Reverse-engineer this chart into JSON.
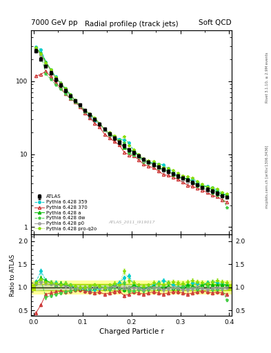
{
  "title_main": "Radial profileρ (track jets)",
  "top_left": "7000 GeV pp",
  "top_right": "Soft QCD",
  "right_label_top": "Rivet 3.1.10, ≥ 2.9M events",
  "right_label_bottom": "mcplots.cern.ch [arXiv:1306.3436]",
  "watermark": "ATLAS_2011_I919017",
  "xlabel": "Charged Particle r",
  "ylabel_ratio": "Ratio to ATLAS",
  "atlas_label": "ATLAS",
  "background_color": "#ffffff",
  "r_values": [
    0.005,
    0.015,
    0.025,
    0.035,
    0.045,
    0.055,
    0.065,
    0.075,
    0.085,
    0.095,
    0.105,
    0.115,
    0.125,
    0.135,
    0.145,
    0.155,
    0.165,
    0.175,
    0.185,
    0.195,
    0.205,
    0.215,
    0.225,
    0.235,
    0.245,
    0.255,
    0.265,
    0.275,
    0.285,
    0.295,
    0.305,
    0.315,
    0.325,
    0.335,
    0.345,
    0.355,
    0.365,
    0.375,
    0.385,
    0.395
  ],
  "atlas_y": [
    260,
    200,
    160,
    130,
    105,
    88,
    74,
    63,
    54,
    47,
    40,
    35,
    30,
    26,
    22,
    19,
    16.5,
    14.5,
    13,
    11.5,
    10.5,
    9.5,
    8.5,
    7.8,
    7.2,
    6.7,
    6.2,
    5.8,
    5.4,
    5.0,
    4.7,
    4.4,
    4.1,
    3.8,
    3.5,
    3.3,
    3.1,
    2.9,
    2.7,
    2.6
  ],
  "atlas_yerr": [
    15,
    10,
    8,
    6,
    5,
    4,
    3.5,
    3,
    2.5,
    2,
    1.8,
    1.5,
    1.3,
    1.1,
    1.0,
    0.9,
    0.8,
    0.7,
    0.6,
    0.6,
    0.5,
    0.5,
    0.4,
    0.4,
    0.35,
    0.3,
    0.3,
    0.28,
    0.25,
    0.23,
    0.22,
    0.2,
    0.19,
    0.18,
    0.17,
    0.15,
    0.14,
    0.13,
    0.12,
    0.11
  ],
  "series": [
    {
      "name": "Pythia 6.428 359",
      "color": "#00cccc",
      "linestyle": "--",
      "marker": "o",
      "markersize": 2.5,
      "filled": true,
      "ratio_y": [
        1.12,
        1.35,
        1.15,
        1.1,
        1.1,
        1.05,
        1.08,
        1.05,
        1.0,
        0.98,
        0.95,
        0.92,
        0.95,
        0.98,
        1.0,
        0.98,
        1.05,
        1.1,
        1.2,
        1.25,
        1.05,
        1.0,
        0.95,
        1.0,
        1.05,
        1.1,
        1.15,
        1.1,
        1.05,
        1.0,
        1.0,
        1.05,
        1.1,
        1.08,
        1.05,
        1.1,
        1.12,
        1.1,
        1.08,
        1.05
      ]
    },
    {
      "name": "Pythia 6.428 370",
      "color": "#cc3333",
      "linestyle": "-",
      "marker": "^",
      "markersize": 3,
      "filled": false,
      "ratio_y": [
        0.45,
        0.62,
        0.85,
        0.88,
        0.9,
        0.92,
        0.9,
        0.92,
        0.95,
        0.95,
        0.92,
        0.9,
        0.88,
        0.9,
        0.85,
        0.88,
        0.9,
        0.92,
        0.82,
        0.85,
        0.9,
        0.88,
        0.85,
        0.88,
        0.9,
        0.88,
        0.85,
        0.88,
        0.9,
        0.9,
        0.88,
        0.85,
        0.88,
        0.9,
        0.92,
        0.9,
        0.88,
        0.9,
        0.88,
        0.85
      ]
    },
    {
      "name": "Pythia 6.428 a",
      "color": "#00bb00",
      "linestyle": "-",
      "marker": "^",
      "markersize": 3,
      "filled": true,
      "ratio_y": [
        1.1,
        1.2,
        1.15,
        1.1,
        1.05,
        1.08,
        1.05,
        1.02,
        1.0,
        0.98,
        0.98,
        1.0,
        1.0,
        1.02,
        0.98,
        1.0,
        1.05,
        1.0,
        0.95,
        0.98,
        1.05,
        1.0,
        0.98,
        1.0,
        1.02,
        0.98,
        1.0,
        1.02,
        0.98,
        0.98,
        1.0,
        1.05,
        1.02,
        1.0,
        1.05,
        1.08,
        1.05,
        1.05,
        1.05,
        1.05
      ]
    },
    {
      "name": "Pythia 6.428 dw",
      "color": "#44cc44",
      "linestyle": "--",
      "marker": "*",
      "markersize": 3,
      "filled": true,
      "ratio_y": [
        1.08,
        1.15,
        0.78,
        0.82,
        0.85,
        0.88,
        0.9,
        0.92,
        0.95,
        0.98,
        1.0,
        1.02,
        1.05,
        1.0,
        0.98,
        0.95,
        1.0,
        1.05,
        1.1,
        0.9,
        0.92,
        0.95,
        0.92,
        0.95,
        0.98,
        1.0,
        1.02,
        1.0,
        0.98,
        1.0,
        1.02,
        1.0,
        0.98,
        0.95,
        1.0,
        1.02,
        0.95,
        0.95,
        0.98,
        0.72
      ]
    },
    {
      "name": "Pythia 6.428 p0",
      "color": "#999999",
      "linestyle": "-",
      "marker": "o",
      "markersize": 2.5,
      "filled": false,
      "ratio_y": [
        1.08,
        1.12,
        1.1,
        1.08,
        1.05,
        1.05,
        1.02,
        1.0,
        1.0,
        0.98,
        0.98,
        1.0,
        1.0,
        1.0,
        0.98,
        1.0,
        1.02,
        1.0,
        0.98,
        0.98,
        1.0,
        0.98,
        0.95,
        0.98,
        1.0,
        0.98,
        0.95,
        0.98,
        1.0,
        0.98,
        0.95,
        0.95,
        0.98,
        1.0,
        0.98,
        0.95,
        0.98,
        1.0,
        0.98,
        1.0
      ]
    },
    {
      "name": "Pythia 6.428 pro-q2o",
      "color": "#88dd00",
      "linestyle": ":",
      "marker": "*",
      "markersize": 3,
      "filled": true,
      "ratio_y": [
        1.1,
        1.18,
        1.12,
        1.1,
        1.08,
        1.05,
        1.08,
        1.05,
        1.02,
        1.0,
        1.0,
        1.02,
        1.05,
        1.02,
        1.0,
        1.05,
        1.08,
        1.05,
        1.35,
        1.15,
        1.1,
        1.05,
        1.02,
        1.05,
        1.1,
        1.08,
        1.05,
        1.1,
        1.12,
        1.1,
        1.08,
        1.12,
        1.15,
        1.12,
        1.1,
        1.08,
        1.12,
        1.15,
        1.12,
        1.1
      ]
    }
  ],
  "ylim_main": [
    0.8,
    500
  ],
  "ylim_ratio": [
    0.38,
    2.15
  ],
  "ratio_yticks": [
    0.5,
    1.0,
    1.5,
    2.0
  ],
  "band_color_inner": "#aadd00",
  "band_color_outer": "#ffff99",
  "band_inner_low": 0.93,
  "band_inner_high": 1.07,
  "band_outer_low": 0.86,
  "band_outer_high": 1.14
}
